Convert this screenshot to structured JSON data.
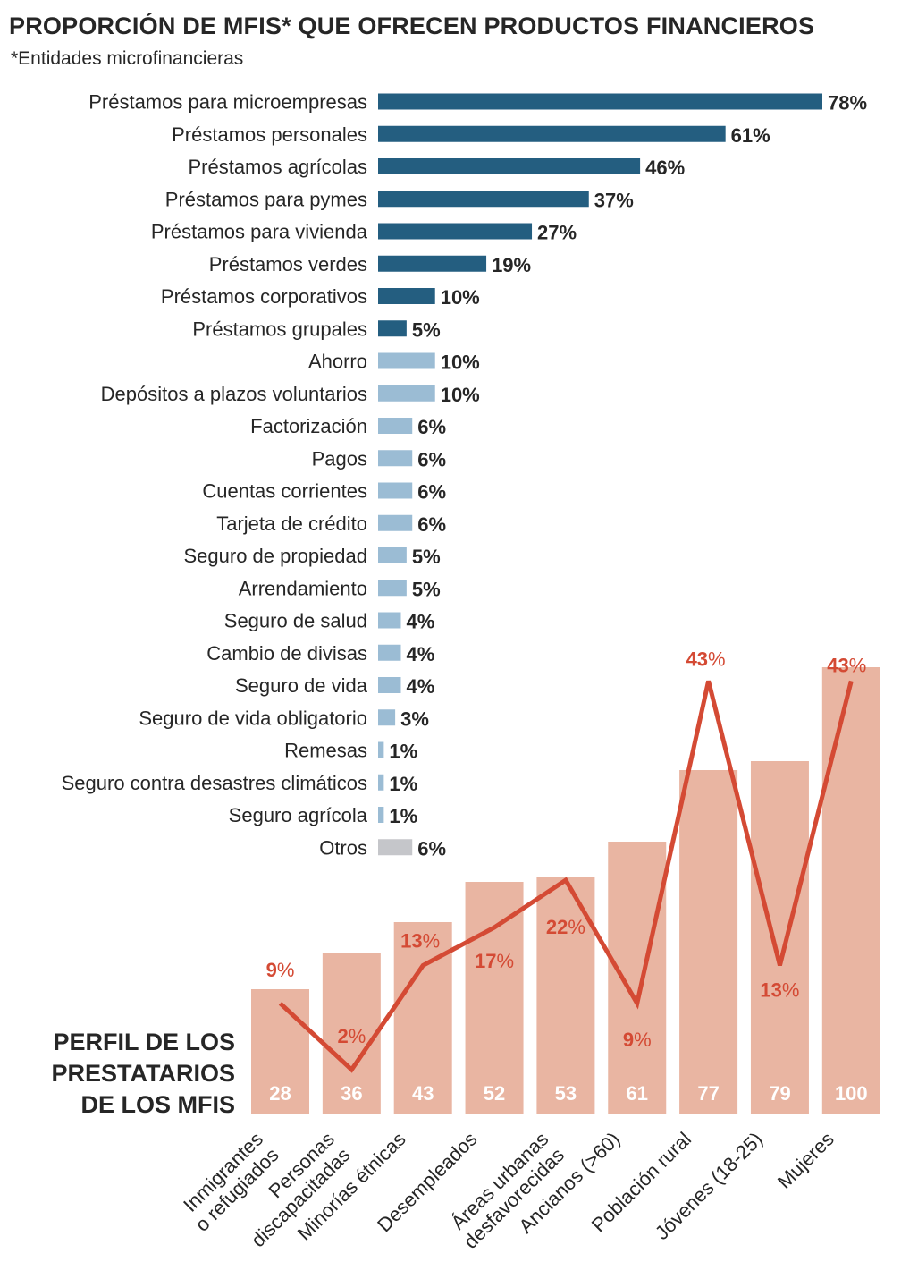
{
  "header": {
    "title": "PROPORCIÓN DE MFIS* QUE OFRECEN PRODUCTOS FINANCIEROS",
    "subtitle": "*Entidades microfinancieras"
  },
  "profile_title": [
    "PERFIL DE LOS",
    "PRESTATARIOS",
    "DE LOS MFIS"
  ],
  "colors": {
    "loans": "#245e80",
    "other_products": "#9bbcd4",
    "others": "#c5c6ca",
    "profile_bar": "#e9b5a2",
    "profile_bar_label": "#ffffff",
    "line": "#d44a34"
  },
  "chart_data": [
    {
      "type": "bar",
      "orientation": "horizontal",
      "title": "PROPORCIÓN DE MFIS* QUE OFRECEN PRODUCTOS FINANCIEROS",
      "subtitle": "*Entidades microfinancieras",
      "unit": "%",
      "categories": [
        "Préstamos para microempresas",
        "Préstamos personales",
        "Préstamos agrícolas",
        "Préstamos para pymes",
        "Préstamos para vivienda",
        "Préstamos verdes",
        "Préstamos corporativos",
        "Préstamos grupales",
        "Ahorro",
        "Depósitos a plazos voluntarios",
        "Factorización",
        "Pagos",
        "Cuentas corrientes",
        "Tarjeta de crédito",
        "Seguro de propiedad",
        "Arrendamiento",
        "Seguro de salud",
        "Cambio de divisas",
        "Seguro de vida",
        "Seguro de vida obligatorio",
        "Remesas",
        "Seguro contra desastres climáticos",
        "Seguro agrícola",
        "Otros"
      ],
      "values": [
        78,
        61,
        46,
        37,
        27,
        19,
        10,
        5,
        10,
        10,
        6,
        6,
        6,
        6,
        5,
        5,
        4,
        4,
        4,
        3,
        1,
        1,
        1,
        6
      ],
      "labels": [
        "78%",
        "61%",
        "46%",
        "37%",
        "27%",
        "19%",
        "10%",
        "5%",
        "10%",
        "10%",
        "6%",
        "6%",
        "6%",
        "6%",
        "5%",
        "5%",
        "4%",
        "4%",
        "4%",
        "3%",
        "1%",
        "1%",
        "1%",
        "6%"
      ],
      "groups": [
        "loan",
        "loan",
        "loan",
        "loan",
        "loan",
        "loan",
        "loan",
        "loan",
        "other",
        "other",
        "other",
        "other",
        "other",
        "other",
        "other",
        "other",
        "other",
        "other",
        "other",
        "other",
        "other",
        "other",
        "other",
        "others"
      ],
      "xlim": [
        0,
        78
      ]
    },
    {
      "type": "bar",
      "title": "PERFIL DE LOS PRESTATARIOS DE LOS MFIS",
      "categories": [
        [
          "Inmigrantes",
          "o refugiados"
        ],
        [
          "Personas",
          "discapacitadas"
        ],
        [
          "Minorías étnicas"
        ],
        [
          "Desempleados"
        ],
        [
          "Áreas urbanas",
          "desfavorecidas"
        ],
        [
          "Ancianos (>60)"
        ],
        [
          "Población rural"
        ],
        [
          "Jóvenes (18-25)"
        ],
        [
          "Mujeres"
        ]
      ],
      "series": [
        {
          "type": "bar",
          "values": [
            28,
            36,
            43,
            52,
            53,
            61,
            77,
            79,
            100
          ],
          "labels": [
            "28",
            "36",
            "43",
            "52",
            "53",
            "61",
            "77",
            "79",
            "100"
          ]
        },
        {
          "type": "line",
          "values": [
            9,
            2,
            13,
            17,
            22,
            9,
            43,
            13,
            43
          ],
          "labels": [
            "9%",
            "2%",
            "13%",
            "17%",
            "22%",
            "9%",
            "43%",
            "13%",
            "43%"
          ]
        }
      ],
      "ylim": [
        0,
        100
      ]
    }
  ]
}
